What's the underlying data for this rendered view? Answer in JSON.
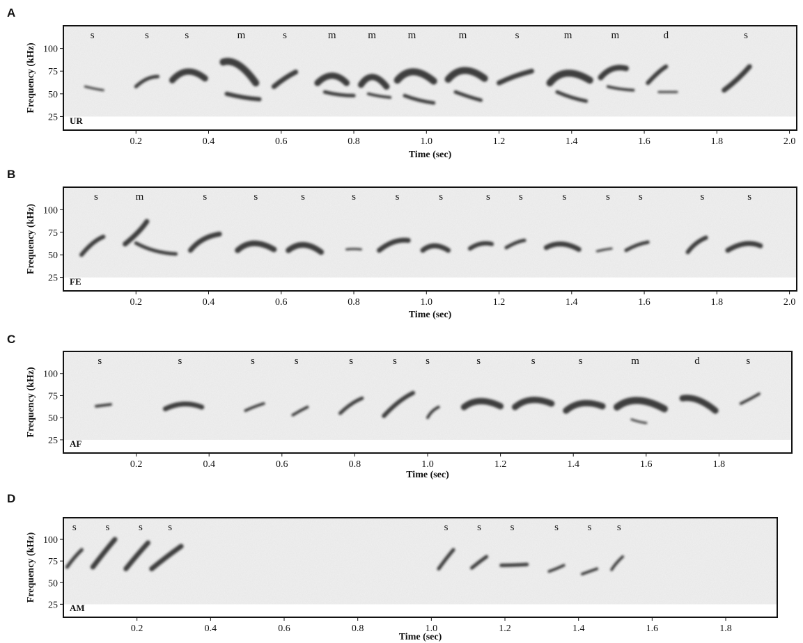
{
  "chart_data": [
    {
      "type": "spectrogram",
      "panel": "A",
      "id_label": "UR",
      "ylabel": "Frequency (kHz)",
      "xlabel": "Time (sec)",
      "xlim": [
        0,
        2.02
      ],
      "ylim": [
        10,
        125
      ],
      "xticks": [
        0.2,
        0.4,
        0.6,
        0.8,
        1.0,
        1.2,
        1.4,
        1.6,
        1.8,
        2.0
      ],
      "xtick_labels": [
        "0.2",
        "0.4",
        "0.6",
        "0.8",
        "1.0",
        "1.2",
        "1.4",
        "1.6",
        "1.8",
        "2.0"
      ],
      "yticks": [
        25,
        50,
        75,
        100
      ],
      "ytick_labels": [
        "25",
        "50",
        "75",
        "100"
      ],
      "syllables": [
        {
          "label": "s",
          "t": 0.08
        },
        {
          "label": "s",
          "t": 0.23
        },
        {
          "label": "s",
          "t": 0.34
        },
        {
          "label": "m",
          "t": 0.49
        },
        {
          "label": "s",
          "t": 0.61
        },
        {
          "label": "m",
          "t": 0.74
        },
        {
          "label": "m",
          "t": 0.85
        },
        {
          "label": "m",
          "t": 0.96
        },
        {
          "label": "m",
          "t": 1.1
        },
        {
          "label": "s",
          "t": 1.25
        },
        {
          "label": "m",
          "t": 1.39
        },
        {
          "label": "m",
          "t": 1.52
        },
        {
          "label": "d",
          "t": 1.66
        },
        {
          "label": "s",
          "t": 1.88
        }
      ]
    },
    {
      "type": "spectrogram",
      "panel": "B",
      "id_label": "FE",
      "ylabel": "Frequency (kHz)",
      "xlabel": "Time (sec)",
      "xlim": [
        0,
        2.02
      ],
      "ylim": [
        10,
        125
      ],
      "xticks": [
        0.2,
        0.4,
        0.6,
        0.8,
        1.0,
        1.2,
        1.4,
        1.6,
        1.8,
        2.0
      ],
      "xtick_labels": [
        "0.2",
        "0.4",
        "0.6",
        "0.8",
        "1.0",
        "1.2",
        "1.4",
        "1.6",
        "1.8",
        "2.0"
      ],
      "yticks": [
        25,
        50,
        75,
        100
      ],
      "ytick_labels": [
        "25",
        "50",
        "75",
        "100"
      ],
      "syllables": [
        {
          "label": "s",
          "t": 0.09
        },
        {
          "label": "m",
          "t": 0.21
        },
        {
          "label": "s",
          "t": 0.39
        },
        {
          "label": "s",
          "t": 0.53
        },
        {
          "label": "s",
          "t": 0.66
        },
        {
          "label": "s",
          "t": 0.8
        },
        {
          "label": "s",
          "t": 0.92
        },
        {
          "label": "s",
          "t": 1.04
        },
        {
          "label": "s",
          "t": 1.17
        },
        {
          "label": "s",
          "t": 1.26
        },
        {
          "label": "s",
          "t": 1.38
        },
        {
          "label": "s",
          "t": 1.5
        },
        {
          "label": "s",
          "t": 1.59
        },
        {
          "label": "s",
          "t": 1.76
        },
        {
          "label": "s",
          "t": 1.89
        }
      ]
    },
    {
      "type": "spectrogram",
      "panel": "C",
      "id_label": "AF",
      "ylabel": "Frequency (kHz)",
      "xlabel": "Time (sec)",
      "xlim": [
        0,
        2.0
      ],
      "ylim": [
        10,
        125
      ],
      "xticks": [
        0.2,
        0.4,
        0.6,
        0.8,
        1.0,
        1.2,
        1.4,
        1.6,
        1.8
      ],
      "xtick_labels": [
        "0.2",
        "0.4",
        "0.6",
        "0.8",
        "1.0",
        "1.2",
        "1.4",
        "1.6",
        "1.8"
      ],
      "yticks": [
        25,
        50,
        75,
        100
      ],
      "ytick_labels": [
        "25",
        "50",
        "75",
        "100"
      ],
      "syllables": [
        {
          "label": "s",
          "t": 0.1
        },
        {
          "label": "s",
          "t": 0.32
        },
        {
          "label": "s",
          "t": 0.52
        },
        {
          "label": "s",
          "t": 0.64
        },
        {
          "label": "s",
          "t": 0.79
        },
        {
          "label": "s",
          "t": 0.91
        },
        {
          "label": "s",
          "t": 1.0
        },
        {
          "label": "s",
          "t": 1.14
        },
        {
          "label": "s",
          "t": 1.29
        },
        {
          "label": "s",
          "t": 1.42
        },
        {
          "label": "m",
          "t": 1.57
        },
        {
          "label": "d",
          "t": 1.74
        },
        {
          "label": "s",
          "t": 1.88
        }
      ]
    },
    {
      "type": "spectrogram",
      "panel": "D",
      "id_label": "AM",
      "ylabel": "Frequency (kHz)",
      "xlabel": "Time (sec)",
      "xlim": [
        0,
        1.94
      ],
      "ylim": [
        10,
        125
      ],
      "xticks": [
        0.2,
        0.4,
        0.6,
        0.8,
        1.0,
        1.2,
        1.4,
        1.6,
        1.8
      ],
      "xtick_labels": [
        "0.2",
        "0.4",
        "0.6",
        "0.8",
        "1.0",
        "1.2",
        "1.4",
        "1.6",
        "1.8"
      ],
      "yticks": [
        25,
        50,
        75,
        100
      ],
      "ytick_labels": [
        "25",
        "50",
        "75",
        "100"
      ],
      "syllables": [
        {
          "label": "s",
          "t": 0.03
        },
        {
          "label": "s",
          "t": 0.12
        },
        {
          "label": "s",
          "t": 0.21
        },
        {
          "label": "s",
          "t": 0.29
        },
        {
          "label": "s",
          "t": 1.04
        },
        {
          "label": "s",
          "t": 1.13
        },
        {
          "label": "s",
          "t": 1.22
        },
        {
          "label": "s",
          "t": 1.34
        },
        {
          "label": "s",
          "t": 1.43
        },
        {
          "label": "s",
          "t": 1.51
        }
      ]
    }
  ]
}
